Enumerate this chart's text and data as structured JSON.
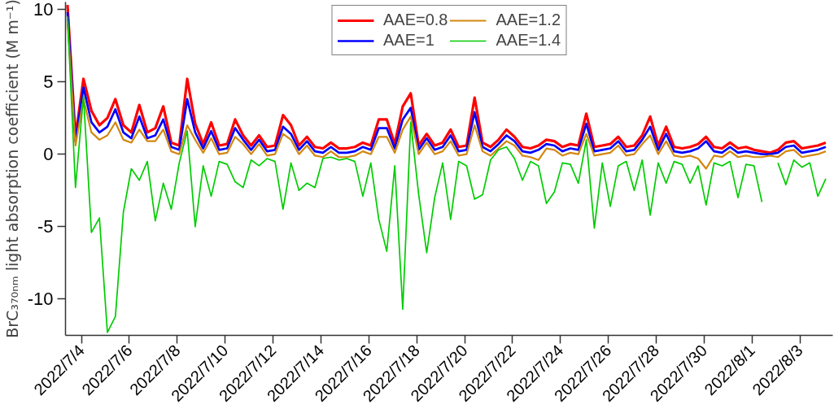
{
  "chart_data": {
    "type": "line",
    "ylabel": "BrC₃₇₀ₙₘ light absorption coefficient (M m⁻¹)",
    "x": [
      "2022-07-03T10:00",
      "2022-07-03T18:00",
      "2022-07-04T02:00",
      "2022-07-04T10:00",
      "2022-07-04T18:00",
      "2022-07-05T02:00",
      "2022-07-05T10:00",
      "2022-07-05T18:00",
      "2022-07-06T02:00",
      "2022-07-06T10:00",
      "2022-07-06T18:00",
      "2022-07-07T02:00",
      "2022-07-07T10:00",
      "2022-07-07T18:00",
      "2022-07-08T02:00",
      "2022-07-08T10:00",
      "2022-07-08T18:00",
      "2022-07-09T02:00",
      "2022-07-09T10:00",
      "2022-07-09T18:00",
      "2022-07-10T02:00",
      "2022-07-10T10:00",
      "2022-07-10T18:00",
      "2022-07-11T02:00",
      "2022-07-11T10:00",
      "2022-07-11T18:00",
      "2022-07-12T02:00",
      "2022-07-12T10:00",
      "2022-07-12T18:00",
      "2022-07-13T02:00",
      "2022-07-13T10:00",
      "2022-07-13T18:00",
      "2022-07-14T02:00",
      "2022-07-14T10:00",
      "2022-07-14T18:00",
      "2022-07-15T02:00",
      "2022-07-15T10:00",
      "2022-07-15T18:00",
      "2022-07-16T02:00",
      "2022-07-16T10:00",
      "2022-07-16T18:00",
      "2022-07-17T02:00",
      "2022-07-17T10:00",
      "2022-07-17T18:00",
      "2022-07-18T02:00",
      "2022-07-18T10:00",
      "2022-07-18T18:00",
      "2022-07-19T02:00",
      "2022-07-19T10:00",
      "2022-07-19T18:00",
      "2022-07-20T02:00",
      "2022-07-20T10:00",
      "2022-07-20T18:00",
      "2022-07-21T02:00",
      "2022-07-21T10:00",
      "2022-07-21T18:00",
      "2022-07-22T02:00",
      "2022-07-22T10:00",
      "2022-07-22T18:00",
      "2022-07-23T02:00",
      "2022-07-23T10:00",
      "2022-07-23T18:00",
      "2022-07-24T02:00",
      "2022-07-24T10:00",
      "2022-07-24T18:00",
      "2022-07-25T02:00",
      "2022-07-25T10:00",
      "2022-07-25T18:00",
      "2022-07-26T02:00",
      "2022-07-26T10:00",
      "2022-07-26T18:00",
      "2022-07-27T02:00",
      "2022-07-27T10:00",
      "2022-07-27T18:00",
      "2022-07-28T02:00",
      "2022-07-28T10:00",
      "2022-07-28T18:00",
      "2022-07-29T02:00",
      "2022-07-29T10:00",
      "2022-07-29T18:00",
      "2022-07-30T02:00",
      "2022-07-30T10:00",
      "2022-07-30T18:00",
      "2022-07-31T02:00",
      "2022-07-31T10:00",
      "2022-07-31T18:00",
      "2022-08-01T02:00",
      "2022-08-01T10:00",
      "2022-08-01T18:00",
      "2022-08-02T02:00",
      "2022-08-02T10:00",
      "2022-08-02T18:00",
      "2022-08-03T02:00",
      "2022-08-03T10:00",
      "2022-08-03T18:00",
      "2022-08-04T02:00"
    ],
    "series": [
      {
        "name": "AAE=0.8",
        "color": "#ff0000",
        "values": [
          10.3,
          1.2,
          5.2,
          3,
          2,
          2.5,
          3.8,
          2,
          1.5,
          3.4,
          1.5,
          1.8,
          3.3,
          0.8,
          0.6,
          5.2,
          2.1,
          0.7,
          2.2,
          0.6,
          0.7,
          2.4,
          1.3,
          0.6,
          1.3,
          0.5,
          0.6,
          2.7,
          2,
          0.6,
          1.2,
          0.5,
          0.4,
          0.8,
          0.4,
          0.4,
          0.5,
          0.8,
          0.6,
          2.4,
          2.4,
          0.7,
          3.3,
          4.2,
          0.6,
          1.4,
          0.6,
          0.8,
          1.7,
          0.5,
          0.6,
          3.9,
          0.8,
          0.5,
          1.0,
          1.7,
          1.2,
          0.5,
          0.4,
          0.6,
          1.0,
          0.9,
          0.5,
          0.7,
          0.6,
          2.8,
          0.5,
          0.6,
          0.7,
          1.2,
          0.5,
          0.6,
          1.3,
          2.6,
          0.6,
          1.9,
          0.5,
          0.4,
          0.5,
          0.7,
          1.2,
          0.5,
          0.4,
          0.8,
          0.4,
          0.5,
          0.3,
          0.2,
          0.1,
          0.3,
          0.8,
          0.9,
          0.4,
          0.5,
          0.6,
          0.8
        ]
      },
      {
        "name": "AAE=1",
        "color": "#0000ff",
        "values": [
          9.8,
          0.9,
          4.6,
          2.2,
          1.5,
          1.9,
          3.1,
          1.5,
          1.1,
          2.6,
          1.1,
          1.3,
          2.4,
          0.5,
          0.3,
          3.8,
          1.5,
          0.4,
          1.6,
          0.3,
          0.4,
          1.8,
          1.0,
          0.3,
          1.0,
          0.2,
          0.3,
          1.9,
          1.4,
          0.3,
          0.9,
          0.2,
          0.1,
          0.5,
          0.1,
          0.1,
          0.2,
          0.5,
          0.3,
          1.8,
          1.8,
          0.4,
          2.4,
          3.2,
          0.3,
          1.1,
          0.3,
          0.5,
          1.3,
          0.2,
          0.3,
          2.9,
          0.5,
          0.2,
          0.7,
          1.3,
          0.9,
          0.2,
          0.1,
          0.3,
          0.7,
          0.6,
          0.2,
          0.4,
          0.3,
          2.1,
          0.2,
          0.3,
          0.4,
          0.9,
          0.2,
          0.3,
          1.0,
          1.9,
          0.3,
          1.4,
          0.2,
          0.1,
          0.2,
          0.4,
          0.9,
          0.2,
          0.1,
          0.5,
          0.1,
          0.2,
          0.1,
          0.0,
          0.0,
          0.1,
          0.5,
          0.6,
          0.1,
          0.2,
          0.3,
          0.5
        ]
      },
      {
        "name": "AAE=1.2",
        "color": "#d4870f",
        "values": [
          9.2,
          0.6,
          3.8,
          1.5,
          1.0,
          1.3,
          2.2,
          1.0,
          0.8,
          1.7,
          0.9,
          0.9,
          1.7,
          0.2,
          0.0,
          2.0,
          1.0,
          0.1,
          1.1,
          0.0,
          0.1,
          1.2,
          0.7,
          0.0,
          0.7,
          -0.1,
          0.0,
          1.4,
          1.0,
          0.0,
          0.6,
          -0.1,
          -0.2,
          0.2,
          -0.2,
          -0.2,
          -0.1,
          0.2,
          0.0,
          1.2,
          1.2,
          0.1,
          1.7,
          2.6,
          0.0,
          0.8,
          0.0,
          0.2,
          0.9,
          -0.1,
          0.0,
          2.0,
          0.2,
          -0.1,
          0.4,
          0.9,
          0.6,
          -0.1,
          -0.2,
          -0.4,
          0.4,
          0.3,
          -0.1,
          0.1,
          0.0,
          1.4,
          -0.1,
          0.0,
          0.1,
          0.6,
          -0.1,
          0.0,
          0.7,
          1.3,
          0.0,
          0.9,
          -0.1,
          -0.2,
          -0.1,
          -0.3,
          -1.0,
          -0.1,
          -0.2,
          0.2,
          -0.2,
          -0.1,
          -0.2,
          -0.2,
          -0.1,
          -0.2,
          0.2,
          0.3,
          -0.2,
          -0.1,
          0.0,
          0.2
        ]
      },
      {
        "name": "AAE=1.4",
        "color": "#00cc00",
        "values": [
          9.5,
          -2.3,
          4.0,
          -5.4,
          -4.4,
          -12.3,
          -11.2,
          -4,
          -1.0,
          -1.8,
          -0.5,
          -4.6,
          -2,
          -3.8,
          -0.6,
          1.6,
          -5,
          -0.8,
          -2.9,
          -0.5,
          -0.7,
          -1.9,
          -2.3,
          -0.4,
          -0.8,
          -0.3,
          -0.5,
          -3.8,
          -0.6,
          -2.5,
          -2,
          -2.3,
          -0.3,
          -0.2,
          -0.4,
          -0.3,
          -0.5,
          -2.9,
          -0.6,
          -4.5,
          -6.7,
          -0.8,
          -10.7,
          2.2,
          -2.8,
          -6.8,
          -3,
          -0.6,
          -4.5,
          -0.5,
          -0.8,
          -3.1,
          -2.8,
          -0.4,
          0.3,
          0.5,
          -0.3,
          -1.8,
          -0.5,
          -0.8,
          -3.4,
          -2.6,
          -0.6,
          -0.7,
          -2,
          1.0,
          -5.1,
          -0.6,
          -3.6,
          -0.8,
          -0.5,
          -2.5,
          -0.4,
          -4.2,
          -0.6,
          -2,
          -0.5,
          -0.7,
          -2,
          -0.8,
          -3.5,
          -0.6,
          -0.8,
          -0.5,
          -3,
          -0.7,
          -0.8,
          -3.3,
          null,
          -0.6,
          -2.1,
          -0.4,
          -0.9,
          -0.6,
          -2.9,
          -1.7
        ]
      }
    ],
    "xlim": [
      "2022-07-03T08:00",
      "2022-08-04T09:00"
    ],
    "ylim": [
      -12.5,
      10.5
    ],
    "xticks": [
      {
        "value": "2022-07-04",
        "label": "2022/7/4"
      },
      {
        "value": "2022-07-06",
        "label": "2022/7/6"
      },
      {
        "value": "2022-07-08",
        "label": "2022/7/8"
      },
      {
        "value": "2022-07-10",
        "label": "2022/7/10"
      },
      {
        "value": "2022-07-12",
        "label": "2022/7/12"
      },
      {
        "value": "2022-07-14",
        "label": "2022/7/14"
      },
      {
        "value": "2022-07-16",
        "label": "2022/7/16"
      },
      {
        "value": "2022-07-18",
        "label": "2022/7/18"
      },
      {
        "value": "2022-07-20",
        "label": "2022/7/20"
      },
      {
        "value": "2022-07-22",
        "label": "2022/7/22"
      },
      {
        "value": "2022-07-24",
        "label": "2022/7/24"
      },
      {
        "value": "2022-07-26",
        "label": "2022/7/26"
      },
      {
        "value": "2022-07-28",
        "label": "2022/7/28"
      },
      {
        "value": "2022-07-30",
        "label": "2022/7/30"
      },
      {
        "value": "2022-08-01",
        "label": "2022/8/1"
      },
      {
        "value": "2022-08-03",
        "label": "2022/8/3"
      }
    ],
    "yticks": [
      10,
      5,
      0,
      -5,
      -10
    ],
    "grid": false,
    "legend": "top",
    "marker": "none",
    "line_style": "solid"
  }
}
